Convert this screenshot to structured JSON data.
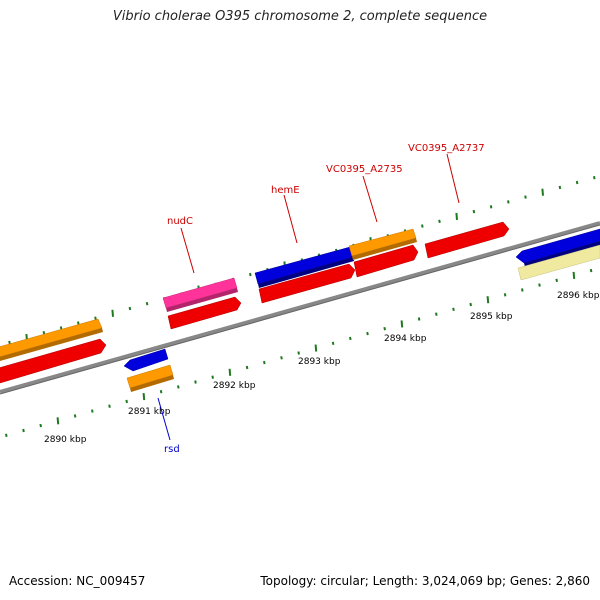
{
  "title": "Vibrio cholerae O395 chromosome 2, complete sequence",
  "footer": {
    "accession": "Accession: NC_009457",
    "summary": "Topology: circular; Length: 3,024,069 bp; Genes: 2,860"
  },
  "colors": {
    "backbone": "#808080",
    "tick": "#1f7a1f",
    "upper_label": "#cc0000",
    "lower_label": "#0000cc"
  },
  "scale_labels": [
    "2890 kbp",
    "2891 kbp",
    "2892 kbp",
    "2893 kbp",
    "2894 kbp",
    "2895 kbp",
    "2896 kbp"
  ],
  "gene_labels": [
    {
      "text": "nudC",
      "color": "#cc0000"
    },
    {
      "text": "hemE",
      "color": "#cc0000"
    },
    {
      "text": "VC0395_A2735",
      "color": "#cc0000"
    },
    {
      "text": "VC0395_A2737",
      "color": "#cc0000"
    },
    {
      "text": "rsd",
      "color": "#0000cc"
    }
  ],
  "features": [
    {
      "name": "orange-left",
      "color": "#ff9900"
    },
    {
      "name": "red-left",
      "color": "#ee0000"
    },
    {
      "name": "pink-nudC",
      "color": "#ff3399"
    },
    {
      "name": "red-under-nudC",
      "color": "#ee0000"
    },
    {
      "name": "blue-rsd",
      "color": "#0000dd"
    },
    {
      "name": "orange-rsd",
      "color": "#ff9900"
    },
    {
      "name": "blue-hemE",
      "color": "#0000dd"
    },
    {
      "name": "red-hemE",
      "color": "#ee0000"
    },
    {
      "name": "orange-A2735",
      "color": "#ff9900"
    },
    {
      "name": "red-A2735",
      "color": "#ee0000"
    },
    {
      "name": "red-A2737",
      "color": "#ee0000"
    },
    {
      "name": "blue-right",
      "color": "#0000dd"
    },
    {
      "name": "yellow-right",
      "color": "#f0eaa0"
    }
  ]
}
